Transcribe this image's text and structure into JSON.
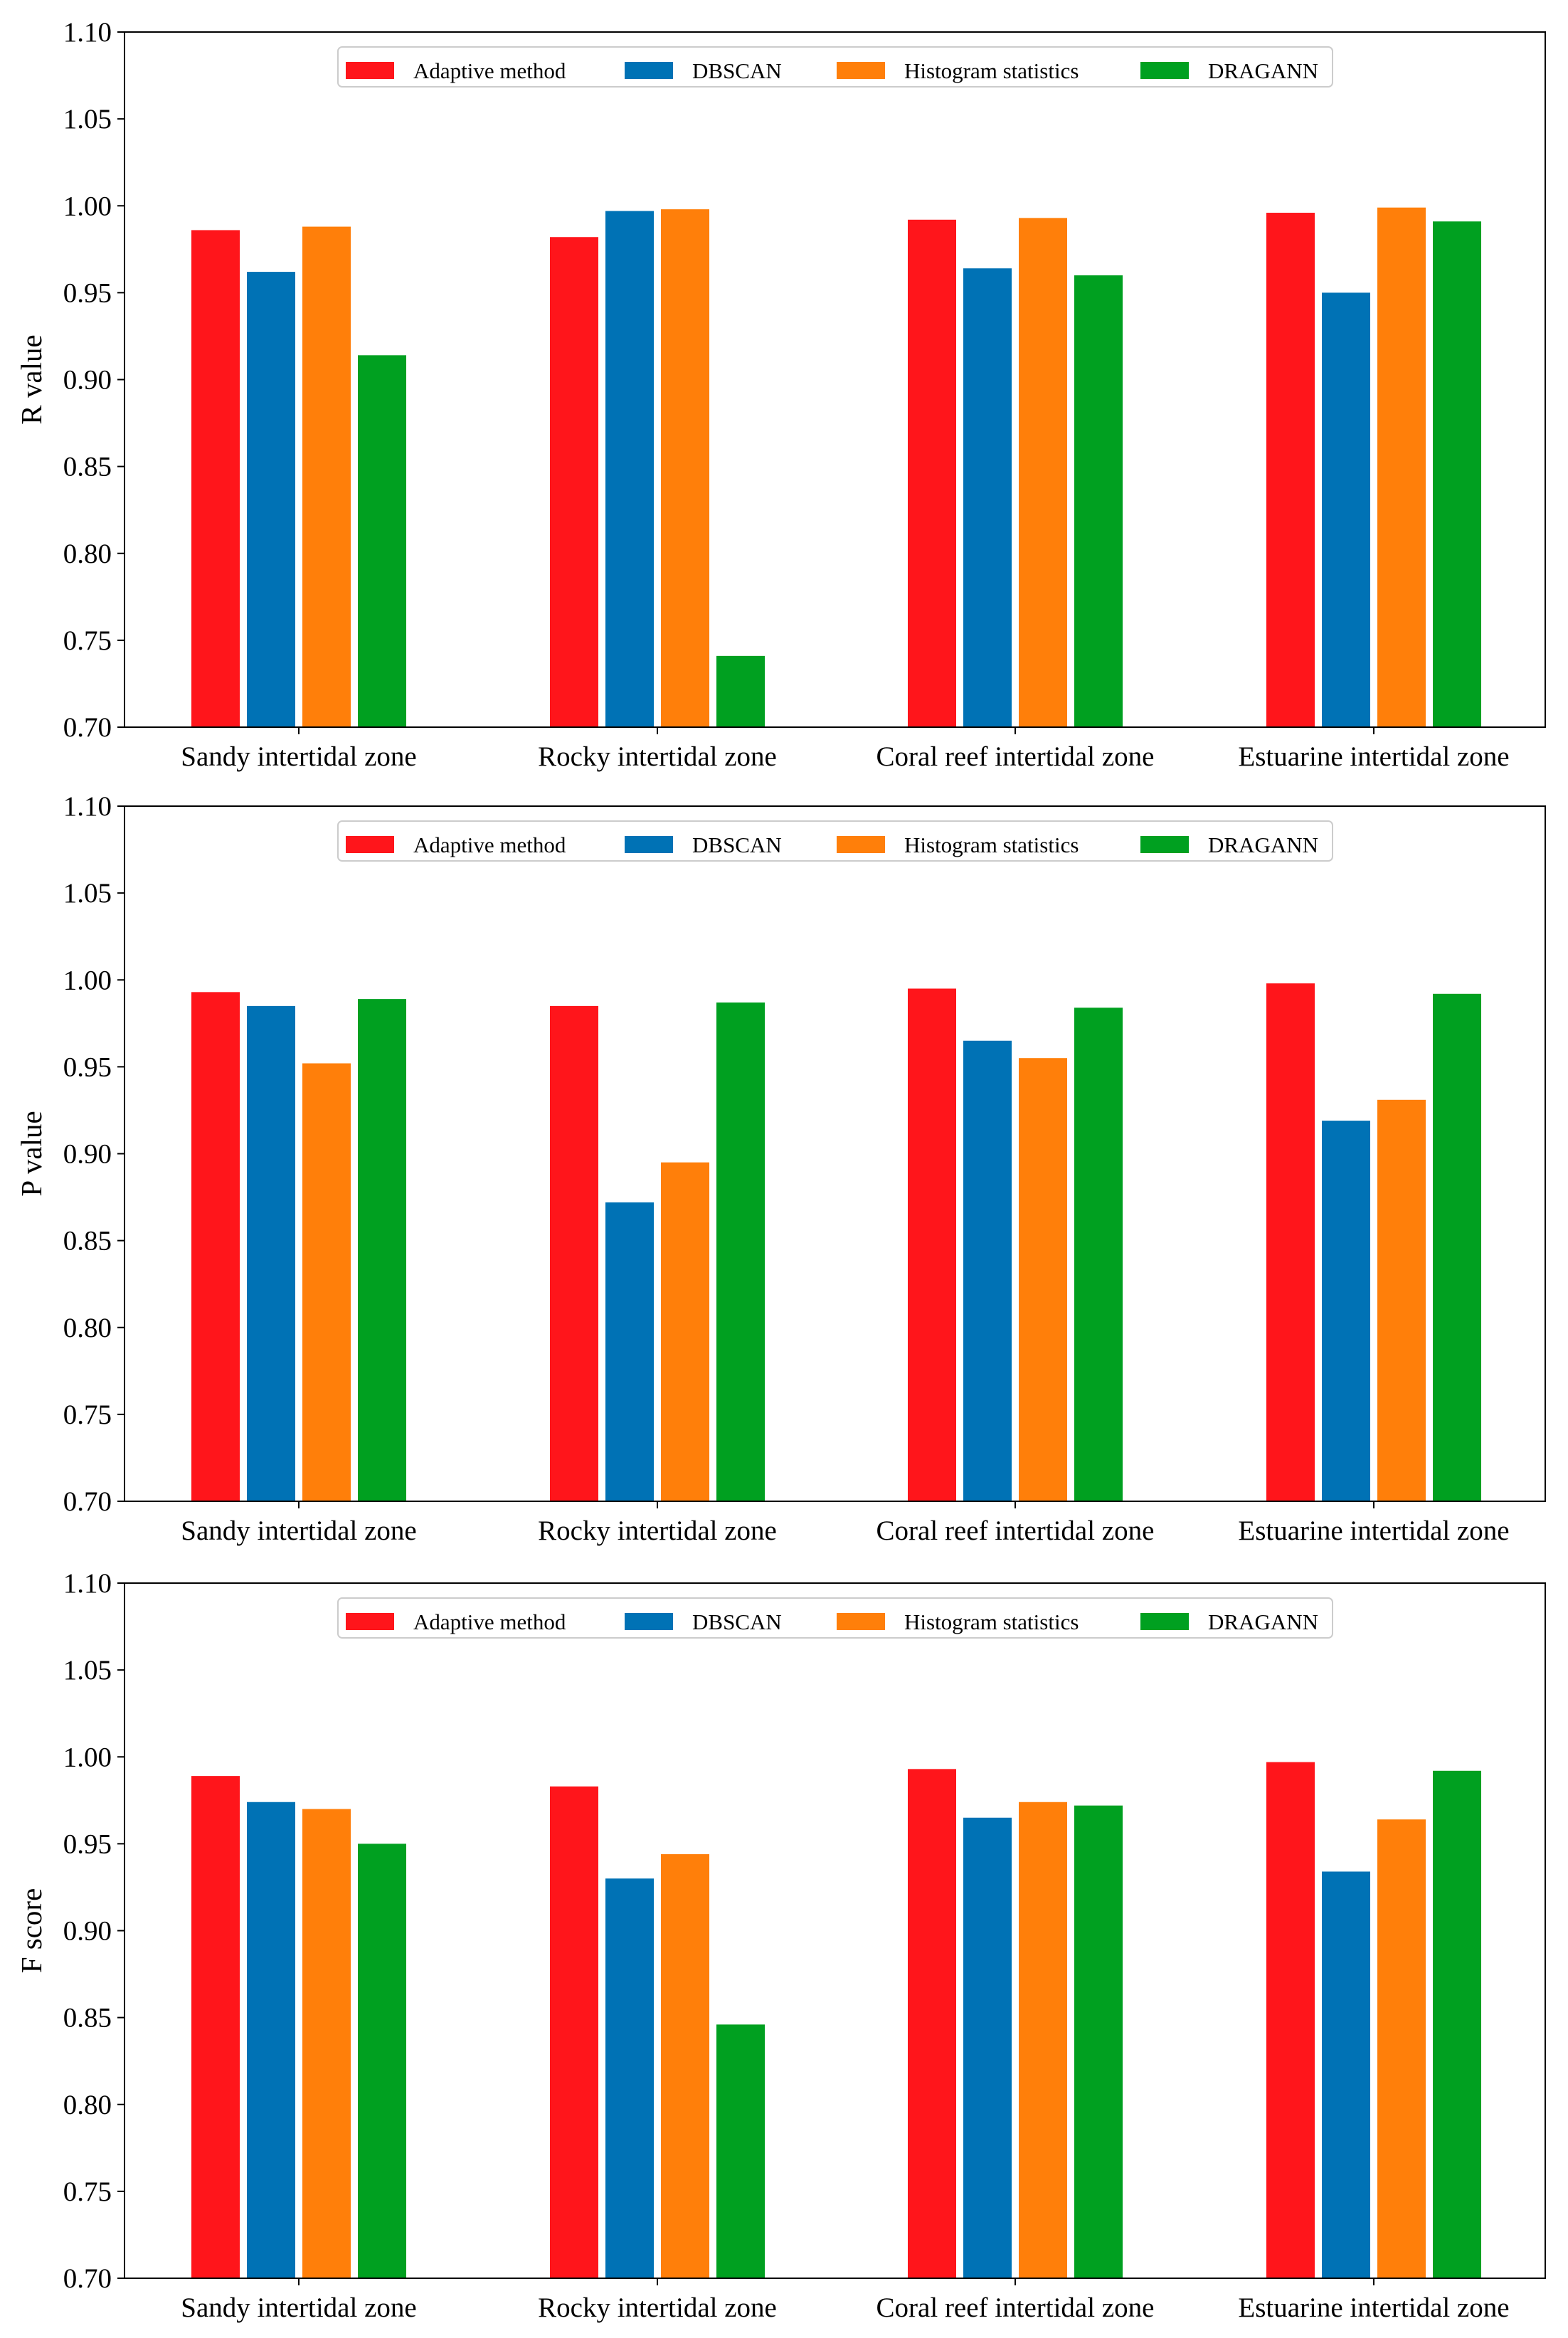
{
  "legend": {
    "entries": [
      "Adaptive method",
      "DBSCAN",
      "Histogram statistics",
      "DRAGANN"
    ]
  },
  "colors": {
    "Adaptive method": "#ff151b",
    "DBSCAN": "#0072b5",
    "Histogram statistics": "#ff7f0a",
    "DRAGANN": "#00a020"
  },
  "chart_data": [
    {
      "type": "bar",
      "ylabel": "R value",
      "xlabel": "",
      "ylim": [
        0.7,
        1.1
      ],
      "yticks": [
        "0.70",
        "0.75",
        "0.80",
        "0.85",
        "0.90",
        "0.95",
        "1.00",
        "1.05",
        "1.10"
      ],
      "legend_position": "top-center",
      "categories": [
        "Sandy intertidal zone",
        "Rocky intertidal zone",
        "Coral reef intertidal zone",
        "Estuarine intertidal zone"
      ],
      "series": [
        {
          "name": "Adaptive method",
          "values": [
            0.986,
            0.982,
            0.992,
            0.996
          ]
        },
        {
          "name": "DBSCAN",
          "values": [
            0.962,
            0.997,
            0.964,
            0.95
          ]
        },
        {
          "name": "Histogram statistics",
          "values": [
            0.988,
            0.998,
            0.993,
            0.999
          ]
        },
        {
          "name": "DRAGANN",
          "values": [
            0.914,
            0.741,
            0.96,
            0.991
          ]
        }
      ]
    },
    {
      "type": "bar",
      "ylabel": "P value",
      "xlabel": "",
      "ylim": [
        0.7,
        1.1
      ],
      "yticks": [
        "0.70",
        "0.75",
        "0.80",
        "0.85",
        "0.90",
        "0.95",
        "1.00",
        "1.05",
        "1.10"
      ],
      "legend_position": "top-center",
      "categories": [
        "Sandy intertidal zone",
        "Rocky intertidal zone",
        "Coral reef intertidal zone",
        "Estuarine intertidal zone"
      ],
      "series": [
        {
          "name": "Adaptive method",
          "values": [
            0.993,
            0.985,
            0.995,
            0.998
          ]
        },
        {
          "name": "DBSCAN",
          "values": [
            0.985,
            0.872,
            0.965,
            0.919
          ]
        },
        {
          "name": "Histogram statistics",
          "values": [
            0.952,
            0.895,
            0.955,
            0.931
          ]
        },
        {
          "name": "DRAGANN",
          "values": [
            0.989,
            0.987,
            0.984,
            0.992
          ]
        }
      ]
    },
    {
      "type": "bar",
      "ylabel": "F score",
      "xlabel": "",
      "ylim": [
        0.7,
        1.1
      ],
      "yticks": [
        "0.70",
        "0.75",
        "0.80",
        "0.85",
        "0.90",
        "0.95",
        "1.00",
        "1.05",
        "1.10"
      ],
      "legend_position": "top-center",
      "categories": [
        "Sandy intertidal zone",
        "Rocky intertidal zone",
        "Coral reef intertidal zone",
        "Estuarine intertidal zone"
      ],
      "series": [
        {
          "name": "Adaptive method",
          "values": [
            0.989,
            0.983,
            0.993,
            0.997
          ]
        },
        {
          "name": "DBSCAN",
          "values": [
            0.974,
            0.93,
            0.965,
            0.934
          ]
        },
        {
          "name": "Histogram statistics",
          "values": [
            0.97,
            0.944,
            0.974,
            0.964
          ]
        },
        {
          "name": "DRAGANN",
          "values": [
            0.95,
            0.846,
            0.972,
            0.992
          ]
        }
      ]
    }
  ]
}
